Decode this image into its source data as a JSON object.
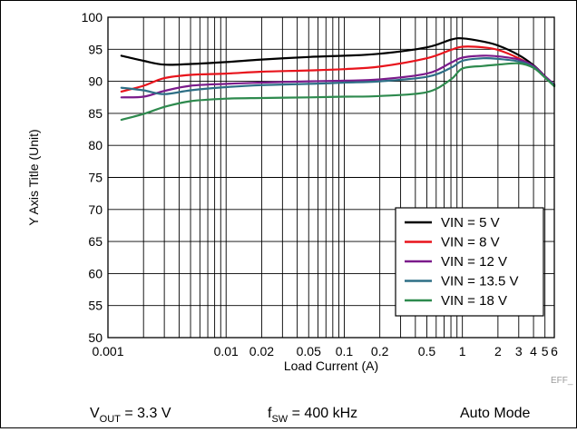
{
  "chart_data": {
    "type": "line",
    "x_scale": "log",
    "xlabel": "Load Current (A)",
    "ylabel": "Y Axis Title (Unit)",
    "xlim": [
      0.001,
      6
    ],
    "ylim": [
      50,
      100
    ],
    "grid": true,
    "legend_position": "lower-right",
    "x_tick_labels": [
      {
        "v": 0.001,
        "t": "0.001"
      },
      {
        "v": 0.01,
        "t": "0.01"
      },
      {
        "v": 0.02,
        "t": "0.02"
      },
      {
        "v": 0.05,
        "t": "0.05"
      },
      {
        "v": 0.1,
        "t": "0.1"
      },
      {
        "v": 0.2,
        "t": "0.2"
      },
      {
        "v": 0.5,
        "t": "0.5"
      },
      {
        "v": 1,
        "t": "1"
      },
      {
        "v": 2,
        "t": "2"
      },
      {
        "v": 3,
        "t": "3"
      },
      {
        "v": 4,
        "t": "4"
      },
      {
        "v": 5,
        "t": "5"
      },
      {
        "v": 6,
        "t": "6"
      }
    ],
    "y_ticks": [
      50,
      55,
      60,
      65,
      70,
      75,
      80,
      85,
      90,
      95,
      100
    ],
    "x": [
      0.0013,
      0.002,
      0.003,
      0.005,
      0.01,
      0.02,
      0.05,
      0.1,
      0.2,
      0.5,
      0.8,
      1,
      1.5,
      2,
      3,
      4,
      5,
      6
    ],
    "series": [
      {
        "name": "VIN = 5 V",
        "color": "#000000",
        "values": [
          94.0,
          93.2,
          92.6,
          92.7,
          93.0,
          93.4,
          93.8,
          94.0,
          94.3,
          95.3,
          96.5,
          96.7,
          96.2,
          95.6,
          94.1,
          92.5,
          90.8,
          89.3
        ]
      },
      {
        "name": "VIN = 8 V",
        "color": "#e8141c",
        "values": [
          88.4,
          89.3,
          90.5,
          91.0,
          91.2,
          91.5,
          91.7,
          91.9,
          92.3,
          93.6,
          94.9,
          95.4,
          95.3,
          94.9,
          93.6,
          92.3,
          90.7,
          89.4
        ]
      },
      {
        "name": "VIN = 12 V",
        "color": "#7b1b8b",
        "values": [
          87.5,
          87.6,
          88.5,
          89.3,
          89.6,
          89.8,
          90.0,
          90.1,
          90.3,
          91.2,
          92.9,
          93.7,
          94.0,
          93.9,
          93.4,
          92.4,
          90.8,
          89.5
        ]
      },
      {
        "name": "VIN = 13.5 V",
        "color": "#2e6f86",
        "values": [
          89.0,
          88.6,
          88.0,
          88.6,
          89.1,
          89.4,
          89.6,
          89.8,
          90.0,
          90.7,
          92.1,
          93.2,
          93.6,
          93.5,
          93.1,
          92.2,
          90.6,
          89.4
        ]
      },
      {
        "name": "VIN = 18 V",
        "color": "#2e8a4e",
        "values": [
          84.0,
          84.9,
          86.0,
          86.9,
          87.3,
          87.4,
          87.5,
          87.6,
          87.7,
          88.3,
          90.3,
          92.0,
          92.4,
          92.6,
          92.8,
          92.1,
          90.6,
          89.2
        ]
      }
    ]
  },
  "footer": {
    "vout_main": "V",
    "vout_sub": "OUT",
    "vout_value": " = 3.3 V",
    "fsw_main": "f",
    "fsw_sub": "SW",
    "fsw_value": " = 400 kHz",
    "mode": "Auto Mode"
  },
  "watermark": "EFF_"
}
